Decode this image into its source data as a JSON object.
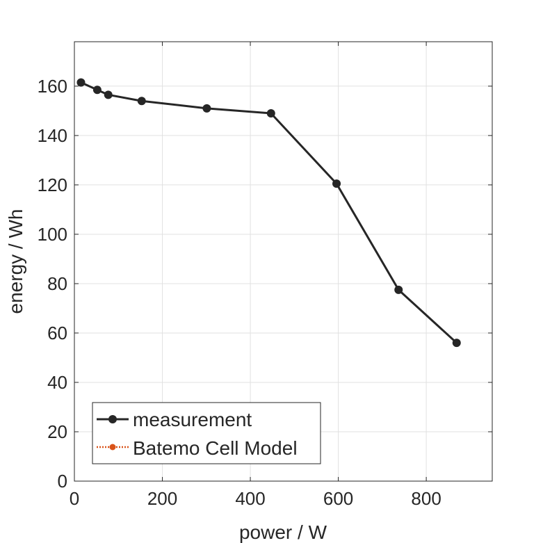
{
  "chart_data": {
    "type": "line",
    "title": "",
    "xlabel": "power / W",
    "ylabel": "energy / Wh",
    "xlim": [
      0,
      950
    ],
    "ylim": [
      0,
      178
    ],
    "xticks": [
      0,
      200,
      400,
      600,
      800
    ],
    "yticks": [
      0,
      20,
      40,
      60,
      80,
      100,
      120,
      140,
      160
    ],
    "grid": true,
    "legend_position": "bottom-left",
    "series": [
      {
        "name": "measurement",
        "color": "#262626",
        "line_style": "solid",
        "marker": "circle",
        "x": [
          15,
          52,
          77,
          153,
          301,
          447,
          596,
          737,
          869
        ],
        "y": [
          161.5,
          158.5,
          156.5,
          154,
          151,
          149,
          120.5,
          77.5,
          56
        ]
      },
      {
        "name": "Batemo Cell Model",
        "color": "#D95319",
        "line_style": "dotted",
        "marker": "circle",
        "x": [],
        "y": []
      }
    ]
  }
}
